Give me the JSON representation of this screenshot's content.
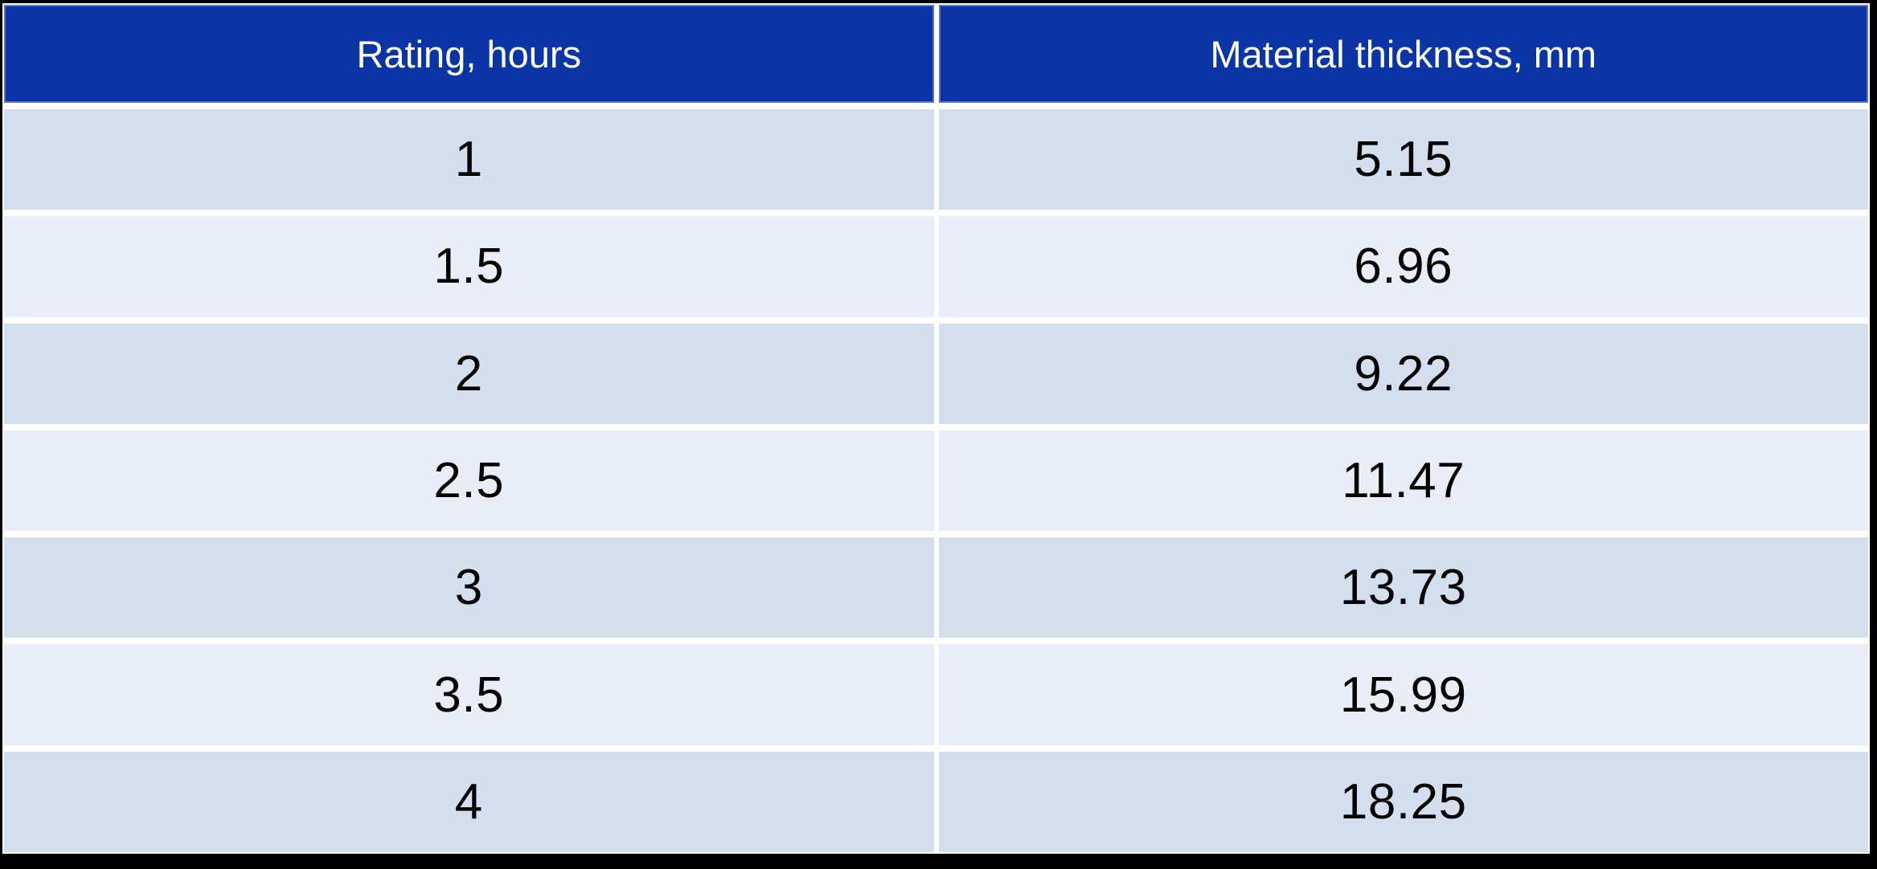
{
  "chart_data": {
    "type": "table",
    "columns": [
      "Rating, hours",
      "Material thickness, mm"
    ],
    "rows": [
      [
        "1",
        "5.15"
      ],
      [
        "1.5",
        "6.96"
      ],
      [
        "2",
        "9.22"
      ],
      [
        "2.5",
        "11.47"
      ],
      [
        "3",
        "13.73"
      ],
      [
        "3.5",
        "15.99"
      ],
      [
        "4",
        "18.25"
      ]
    ],
    "layout": {
      "header_position": "top",
      "banded_rows": true,
      "gridlines": "white-gaps"
    }
  },
  "colors": {
    "frame": "#000000",
    "grid_gap": "#ffffff",
    "header_bg": "#0b34a4",
    "header_text": "#ffffff",
    "row_alt_dark": "#d3deee",
    "row_alt_light": "#e9edf5",
    "cell_text": "#000000"
  }
}
